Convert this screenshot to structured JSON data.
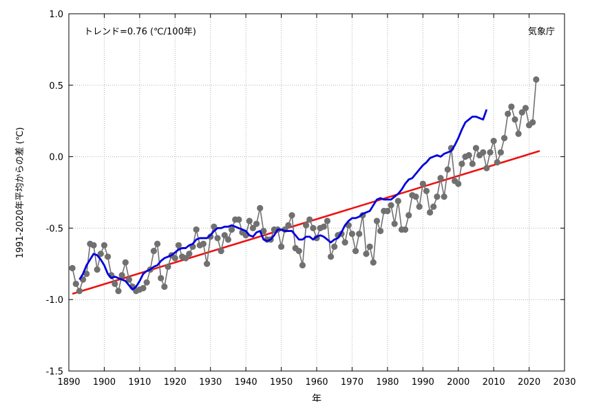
{
  "chart_data": {
    "type": "line",
    "title": "",
    "xlabel": "年",
    "ylabel": "1991-2020年平均からの差 (℃)",
    "xlim": [
      1890,
      2030
    ],
    "ylim": [
      -1.5,
      1.0
    ],
    "xticks": [
      1890,
      1900,
      1910,
      1920,
      1930,
      1940,
      1950,
      1960,
      1970,
      1980,
      1990,
      2000,
      2010,
      2020,
      2030
    ],
    "yticks": [
      -1.5,
      -1.0,
      -0.5,
      0.0,
      0.5,
      1.0
    ],
    "ytick_labels": [
      "-1.5",
      "-1.0",
      "-0.5",
      "0.0",
      "0.5",
      "1.0"
    ],
    "grid": true,
    "annotations": {
      "trend": "トレンド=0.76 (℃/100年)",
      "source": "気象庁"
    },
    "colors": {
      "annual": "#707070",
      "moving_average": "#0000dd",
      "trend": "#ee1111"
    },
    "series": [
      {
        "kind": "annual",
        "x_start": 1891,
        "values": [
          -0.78,
          -0.89,
          -0.94,
          -0.86,
          -0.82,
          -0.61,
          -0.62,
          -0.79,
          -0.68,
          -0.62,
          -0.7,
          -0.83,
          -0.89,
          -0.94,
          -0.83,
          -0.74,
          -0.86,
          -0.91,
          -0.94,
          -0.93,
          -0.92,
          -0.88,
          -0.79,
          -0.66,
          -0.61,
          -0.85,
          -0.91,
          -0.77,
          -0.69,
          -0.71,
          -0.62,
          -0.7,
          -0.71,
          -0.68,
          -0.63,
          -0.51,
          -0.62,
          -0.61,
          -0.75,
          -0.56,
          -0.49,
          -0.57,
          -0.66,
          -0.55,
          -0.58,
          -0.51,
          -0.44,
          -0.44,
          -0.53,
          -0.55,
          -0.45,
          -0.5,
          -0.47,
          -0.36,
          -0.52,
          -0.58,
          -0.58,
          -0.51,
          -0.51,
          -0.63,
          -0.51,
          -0.48,
          -0.41,
          -0.64,
          -0.66,
          -0.76,
          -0.48,
          -0.44,
          -0.5,
          -0.57,
          -0.5,
          -0.49,
          -0.45,
          -0.7,
          -0.63,
          -0.55,
          -0.54,
          -0.6,
          -0.48,
          -0.54,
          -0.66,
          -0.54,
          -0.41,
          -0.68,
          -0.63,
          -0.74,
          -0.45,
          -0.52,
          -0.38,
          -0.38,
          -0.34,
          -0.47,
          -0.31,
          -0.51,
          -0.51,
          -0.41,
          -0.27,
          -0.28,
          -0.35,
          -0.19,
          -0.24,
          -0.39,
          -0.35,
          -0.28,
          -0.15,
          -0.28,
          -0.09,
          0.06,
          -0.17,
          -0.19,
          -0.05,
          0.0,
          0.01,
          -0.05,
          0.06,
          0.01,
          0.03,
          -0.08,
          0.03,
          0.11,
          -0.04,
          0.03,
          0.13,
          0.3,
          0.35,
          0.26,
          0.16,
          0.31,
          0.34,
          0.22,
          0.24,
          0.54
        ]
      },
      {
        "kind": "moving_average",
        "x_start": 1893,
        "values": [
          -0.86,
          -0.82,
          -0.76,
          -0.72,
          -0.68,
          -0.69,
          -0.72,
          -0.76,
          -0.82,
          -0.85,
          -0.84,
          -0.85,
          -0.86,
          -0.87,
          -0.9,
          -0.93,
          -0.91,
          -0.87,
          -0.82,
          -0.8,
          -0.79,
          -0.77,
          -0.76,
          -0.73,
          -0.71,
          -0.7,
          -0.69,
          -0.67,
          -0.65,
          -0.64,
          -0.64,
          -0.62,
          -0.61,
          -0.58,
          -0.57,
          -0.57,
          -0.57,
          -0.55,
          -0.52,
          -0.5,
          -0.5,
          -0.49,
          -0.49,
          -0.48,
          -0.49,
          -0.5,
          -0.51,
          -0.52,
          -0.55,
          -0.56,
          -0.53,
          -0.52,
          -0.58,
          -0.59,
          -0.58,
          -0.55,
          -0.51,
          -0.51,
          -0.52,
          -0.52,
          -0.52,
          -0.55,
          -0.58,
          -0.58,
          -0.56,
          -0.56,
          -0.58,
          -0.56,
          -0.55,
          -0.56,
          -0.58,
          -0.6,
          -0.58,
          -0.57,
          -0.53,
          -0.48,
          -0.45,
          -0.43,
          -0.43,
          -0.42,
          -0.4,
          -0.39,
          -0.38,
          -0.34,
          -0.3,
          -0.29,
          -0.3,
          -0.3,
          -0.3,
          -0.28,
          -0.26,
          -0.23,
          -0.19,
          -0.16,
          -0.15,
          -0.12,
          -0.09,
          -0.06,
          -0.04,
          -0.01,
          0.0,
          0.01,
          0.0,
          0.02,
          0.03,
          0.04,
          0.08,
          0.13,
          0.19,
          0.24,
          0.26,
          0.28,
          0.28,
          0.27,
          0.26,
          0.33
        ]
      },
      {
        "kind": "trend",
        "x": [
          1891,
          2023
        ],
        "values": [
          -0.96,
          0.04
        ]
      }
    ]
  }
}
